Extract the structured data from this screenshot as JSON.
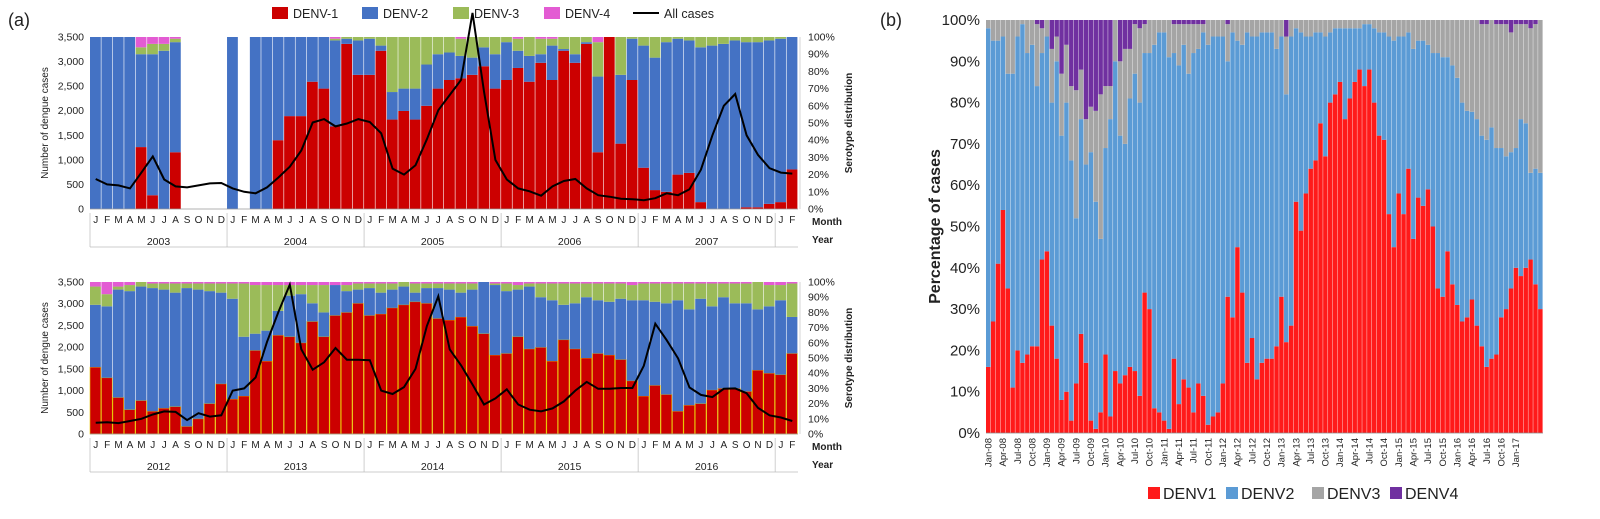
{
  "figure": {
    "label_a": "(a)",
    "label_b": "(b)",
    "legend_a": [
      {
        "name": "DENV-1",
        "color": "#CC0000",
        "kind": "box"
      },
      {
        "name": "DENV-2",
        "color": "#4472C4",
        "kind": "box"
      },
      {
        "name": "DENV-3",
        "color": "#9BBB59",
        "kind": "box"
      },
      {
        "name": "DENV-4",
        "color": "#E35BD3",
        "kind": "box"
      },
      {
        "name": "All cases",
        "color": "#000000",
        "kind": "line"
      }
    ],
    "legend_b": [
      {
        "name": "DENV1",
        "color": "#FF1A1A"
      },
      {
        "name": "DENV2",
        "color": "#5B9BD5"
      },
      {
        "name": "DENV3",
        "color": "#A5A5A5"
      },
      {
        "name": "DENV4",
        "color": "#7030A0"
      }
    ]
  },
  "chart_data": [
    {
      "id": "a_top",
      "type": "bar",
      "stacked": true,
      "ylabel_left": "Number of dengue cases",
      "ylabel_right": "Serotype distribution",
      "x_axis_word": "Month",
      "year_axis_word": "Year",
      "ylim_left": [
        0,
        3500
      ],
      "ylim_right": [
        0,
        100
      ],
      "yticks_left": [
        "0",
        "500",
        "1,000",
        "1,500",
        "2,000",
        "2,500",
        "3,000",
        "3,500"
      ],
      "yticks_right": [
        "0%",
        "10%",
        "20%",
        "30%",
        "40%",
        "50%",
        "60%",
        "70%",
        "80%",
        "90%",
        "100%"
      ],
      "month_letters": [
        "J",
        "F",
        "M",
        "A",
        "M",
        "J",
        "J",
        "A",
        "S",
        "O",
        "N",
        "D"
      ],
      "years": [
        "2003",
        "2004",
        "2005",
        "2006",
        "2007"
      ],
      "series_order": [
        "DENV-1",
        "DENV-2",
        "DENV-3",
        "DENV-4"
      ],
      "denv1_pct": [
        0,
        0,
        0,
        0,
        36,
        8,
        0,
        33,
        null,
        null,
        null,
        null,
        0,
        null,
        0,
        0,
        40,
        54,
        54,
        74,
        70,
        48,
        96,
        78,
        78,
        92,
        52,
        57,
        52,
        60,
        70,
        75,
        76,
        78,
        83,
        70,
        75,
        82,
        74,
        85,
        75,
        92,
        85,
        96,
        33,
        100,
        38,
        75,
        24,
        11,
        10,
        20,
        21,
        4,
        0,
        0,
        0,
        1,
        1,
        3,
        4,
        23
      ],
      "denv2_pct": [
        100,
        100,
        100,
        100,
        54,
        82,
        92,
        64,
        null,
        null,
        null,
        null,
        100,
        null,
        100,
        100,
        60,
        46,
        46,
        26,
        30,
        50,
        3,
        20,
        21,
        3,
        16,
        13,
        18,
        24,
        20,
        16,
        13,
        10,
        11,
        20,
        22,
        10,
        15,
        5,
        20,
        1,
        5,
        1,
        44,
        0,
        40,
        24,
        71,
        77,
        87,
        79,
        77,
        90,
        95,
        96,
        98,
        96,
        96,
        95,
        95,
        77
      ],
      "denv3_pct": [
        0,
        0,
        0,
        0,
        4,
        6,
        4,
        2,
        null,
        null,
        null,
        null,
        0,
        null,
        0,
        0,
        0,
        0,
        0,
        0,
        0,
        1,
        1,
        2,
        1,
        5,
        32,
        30,
        30,
        16,
        10,
        9,
        10,
        12,
        6,
        10,
        3,
        7,
        11,
        9,
        4,
        7,
        10,
        3,
        20,
        0,
        22,
        1,
        5,
        12,
        3,
        1,
        2,
        6,
        5,
        4,
        2,
        3,
        3,
        2,
        1,
        0
      ],
      "denv4_pct": [
        0,
        0,
        0,
        0,
        6,
        4,
        4,
        1,
        null,
        null,
        null,
        null,
        0,
        null,
        0,
        0,
        0,
        0,
        0,
        0,
        0,
        1,
        0,
        0,
        0,
        0,
        0,
        0,
        0,
        0,
        0,
        0,
        1,
        0,
        0,
        0,
        0,
        1,
        0,
        1,
        1,
        0,
        0,
        0,
        3,
        0,
        0,
        0,
        0,
        0,
        0,
        0,
        0,
        0,
        0,
        0,
        0,
        0,
        0,
        0,
        0,
        0
      ],
      "all_cases": [
        610,
        500,
        480,
        420,
        740,
        1070,
        600,
        460,
        440,
        480,
        520,
        530,
        420,
        350,
        320,
        440,
        640,
        860,
        1190,
        1760,
        1830,
        1680,
        1740,
        1830,
        1770,
        1540,
        820,
        700,
        890,
        1420,
        2010,
        2320,
        2630,
        3990,
        2390,
        1000,
        600,
        420,
        360,
        270,
        460,
        570,
        610,
        420,
        280,
        250,
        210,
        200,
        180,
        220,
        320,
        280,
        400,
        800,
        1500,
        2100,
        2340,
        1500,
        1100,
        830,
        740,
        720
      ]
    },
    {
      "id": "a_bottom",
      "type": "bar",
      "stacked": true,
      "ylabel_left": "Number of dengue cases",
      "ylabel_right": "Serotype distribution",
      "x_axis_word": "Month",
      "year_axis_word": "Year",
      "ylim_left": [
        0,
        3500
      ],
      "ylim_right": [
        0,
        100
      ],
      "yticks_left": [
        "0",
        "500",
        "1,000",
        "1,500",
        "2,000",
        "2,500",
        "3,000",
        "3,500"
      ],
      "yticks_right": [
        "0%",
        "10%",
        "20%",
        "30%",
        "40%",
        "50%",
        "60%",
        "70%",
        "80%",
        "90%",
        "100%"
      ],
      "month_letters": [
        "J",
        "F",
        "M",
        "A",
        "M",
        "J",
        "J",
        "A",
        "S",
        "O",
        "N",
        "D"
      ],
      "years": [
        "2012",
        "2013",
        "2014",
        "2015",
        "2016"
      ],
      "series_order": [
        "DENV-1",
        "DENV-2",
        "DENV-3",
        "DENV-4"
      ],
      "denv1_pct": [
        44,
        37,
        24,
        16,
        22,
        15,
        17,
        18,
        5,
        10,
        20,
        33,
        23,
        25,
        55,
        48,
        65,
        64,
        60,
        74,
        64,
        78,
        80,
        86,
        78,
        79,
        83,
        85,
        87,
        86,
        76,
        75,
        77,
        71,
        66,
        52,
        53,
        64,
        56,
        57,
        48,
        62,
        56,
        50,
        53,
        52,
        49,
        35,
        25,
        32,
        26,
        15,
        19,
        20,
        29,
        30,
        30,
        28,
        42,
        40,
        39,
        53
      ],
      "denv2_pct": [
        41,
        47,
        71,
        78,
        75,
        81,
        78,
        75,
        91,
        85,
        74,
        60,
        66,
        39,
        11,
        20,
        16,
        27,
        32,
        12,
        16,
        20,
        14,
        9,
        18,
        14,
        12,
        12,
        6,
        10,
        20,
        20,
        16,
        24,
        34,
        46,
        41,
        31,
        41,
        33,
        40,
        23,
        30,
        40,
        35,
        35,
        40,
        53,
        63,
        55,
        60,
        73,
        63,
        69,
        55,
        60,
        56,
        58,
        40,
        44,
        49,
        24
      ],
      "denv3_pct": [
        12,
        8,
        2,
        4,
        3,
        3,
        4,
        6,
        3,
        4,
        5,
        6,
        10,
        35,
        32,
        30,
        17,
        7,
        6,
        12,
        18,
        0,
        4,
        4,
        3,
        6,
        4,
        3,
        6,
        3,
        3,
        4,
        6,
        4,
        0,
        1,
        5,
        3,
        2,
        9,
        11,
        14,
        13,
        9,
        11,
        12,
        10,
        10,
        11,
        12,
        13,
        11,
        17,
        10,
        15,
        9,
        13,
        13,
        18,
        14,
        10,
        22
      ],
      "denv4_pct": [
        3,
        8,
        3,
        2,
        0,
        1,
        1,
        1,
        1,
        1,
        1,
        1,
        1,
        1,
        2,
        2,
        2,
        2,
        2,
        2,
        2,
        2,
        2,
        1,
        1,
        1,
        1,
        0,
        1,
        1,
        1,
        1,
        1,
        1,
        0,
        1,
        1,
        2,
        1,
        1,
        1,
        1,
        1,
        1,
        1,
        1,
        1,
        2,
        1,
        1,
        1,
        1,
        1,
        1,
        1,
        1,
        1,
        1,
        0,
        2,
        2,
        1
      ],
      "all_cases": [
        260,
        270,
        250,
        300,
        350,
        450,
        520,
        510,
        320,
        480,
        400,
        430,
        1000,
        1050,
        1300,
        2120,
        2810,
        3440,
        1950,
        1480,
        1650,
        1980,
        1710,
        1710,
        1700,
        1000,
        920,
        1080,
        1500,
        2490,
        3170,
        1950,
        1580,
        1140,
        680,
        820,
        1030,
        680,
        560,
        520,
        590,
        750,
        1000,
        1200,
        1040,
        1040,
        1060,
        1060,
        1570,
        2540,
        2160,
        1740,
        1070,
        900,
        850,
        1040,
        1050,
        940,
        600,
        430,
        380,
        300
      ]
    },
    {
      "id": "b",
      "type": "bar",
      "stacked": true,
      "percent": true,
      "ylabel": "Percentage of cases",
      "ylim": [
        0,
        100
      ],
      "yticks": [
        "0%",
        "10%",
        "20%",
        "30%",
        "40%",
        "50%",
        "60%",
        "70%",
        "80%",
        "90%",
        "100%"
      ],
      "x_labels": [
        "Jan-08",
        "Apr-08",
        "Jul-08",
        "Oct-08",
        "Jan-09",
        "Apr-09",
        "Jul-09",
        "Oct-09",
        "Jan-10",
        "Apr-10",
        "Jul-10",
        "Oct-10",
        "Jan-11",
        "Apr-11",
        "Jul-11",
        "Oct-11",
        "Jan-12",
        "Apr-12",
        "Jul-12",
        "Oct-12",
        "Jan-13",
        "Apr-13",
        "Jul-13",
        "Oct-13",
        "Jan-14",
        "Apr-14",
        "Jul-14",
        "Oct-14",
        "Jan-15",
        "Apr-15",
        "Jul-15",
        "Oct-15",
        "Jan-16",
        "Apr-16",
        "Jul-16",
        "Oct-16",
        "Jan-17"
      ],
      "series_order": [
        "DENV1",
        "DENV2",
        "DENV3",
        "DENV4"
      ],
      "denv1": [
        16,
        27,
        41,
        54,
        35,
        11,
        20,
        17,
        19,
        21,
        21,
        42,
        44,
        26,
        18,
        8,
        10,
        3,
        12,
        24,
        17,
        3,
        1,
        5,
        19,
        4,
        15,
        12,
        14,
        16,
        15,
        9,
        34,
        30,
        6,
        5,
        3,
        1,
        18,
        7,
        13,
        11,
        5,
        12,
        9,
        2,
        4,
        5,
        12,
        33,
        28,
        45,
        34,
        17,
        23,
        13,
        17,
        18,
        18,
        21,
        33,
        22,
        26,
        56,
        49,
        58,
        64,
        66,
        75,
        67,
        80,
        82,
        85,
        76,
        81,
        85,
        88,
        84,
        88,
        80,
        72,
        71,
        53,
        45,
        58,
        53,
        64,
        47,
        57,
        55,
        59,
        50,
        35,
        33,
        44,
        36,
        31,
        27,
        28,
        32,
        26,
        21,
        16,
        18,
        19,
        28,
        30,
        35,
        40,
        38,
        40,
        42,
        36,
        30
      ],
      "denv2": [
        82,
        68,
        54,
        42,
        52,
        76,
        76,
        82,
        73,
        73,
        63,
        50,
        52,
        54,
        72,
        64,
        70,
        63,
        40,
        52,
        48,
        65,
        55,
        42,
        50,
        72,
        75,
        60,
        56,
        65,
        72,
        71,
        58,
        62,
        88,
        92,
        94,
        90,
        74,
        82,
        81,
        76,
        87,
        81,
        88,
        92,
        92,
        91,
        84,
        57,
        69,
        50,
        60,
        80,
        73,
        83,
        80,
        79,
        79,
        72,
        63,
        60,
        70,
        42,
        48,
        38,
        32,
        31,
        22,
        29,
        17,
        16,
        13,
        22,
        17,
        13,
        10,
        15,
        11,
        18,
        25,
        26,
        43,
        50,
        38,
        43,
        33,
        46,
        38,
        40,
        35,
        42,
        57,
        58,
        47,
        53,
        55,
        53,
        50,
        45,
        50,
        51,
        55,
        56,
        50,
        41,
        37,
        33,
        29,
        38,
        35,
        21,
        28,
        33
      ],
      "denv3": [
        2,
        5,
        5,
        4,
        13,
        13,
        4,
        1,
        8,
        6,
        15,
        6,
        4,
        13,
        6,
        15,
        14,
        18,
        31,
        12,
        11,
        11,
        22,
        35,
        15,
        8,
        10,
        18,
        23,
        12,
        12,
        18,
        7,
        8,
        6,
        3,
        3,
        9,
        7,
        10,
        5,
        12,
        7,
        6,
        2,
        6,
        4,
        4,
        4,
        9,
        3,
        5,
        6,
        3,
        4,
        4,
        3,
        3,
        3,
        7,
        4,
        14,
        4,
        2,
        3,
        4,
        4,
        3,
        3,
        4,
        3,
        2,
        2,
        2,
        2,
        2,
        2,
        1,
        1,
        2,
        3,
        3,
        4,
        5,
        4,
        4,
        3,
        7,
        5,
        5,
        6,
        8,
        8,
        9,
        9,
        11,
        14,
        20,
        22,
        22,
        24,
        27,
        28,
        26,
        30,
        30,
        32,
        29,
        30,
        23,
        24,
        35,
        35,
        37
      ],
      "denv4": [
        0,
        0,
        0,
        0,
        0,
        0,
        0,
        0,
        0,
        0,
        1,
        2,
        0,
        7,
        4,
        13,
        6,
        16,
        17,
        12,
        24,
        21,
        22,
        18,
        16,
        16,
        0,
        10,
        7,
        7,
        1,
        2,
        1,
        0,
        0,
        0,
        0,
        0,
        1,
        1,
        1,
        1,
        1,
        1,
        1,
        0,
        0,
        0,
        0,
        1,
        0,
        0,
        0,
        0,
        0,
        0,
        0,
        0,
        0,
        0,
        0,
        4,
        0,
        0,
        0,
        0,
        0,
        0,
        0,
        0,
        0,
        0,
        0,
        0,
        0,
        0,
        0,
        0,
        0,
        0,
        0,
        0,
        0,
        0,
        0,
        0,
        0,
        0,
        0,
        0,
        0,
        0,
        0,
        0,
        0,
        0,
        0,
        0,
        0,
        0,
        0,
        1,
        1,
        0,
        1,
        1,
        1,
        3,
        1,
        1,
        1,
        2,
        1,
        0
      ]
    }
  ]
}
